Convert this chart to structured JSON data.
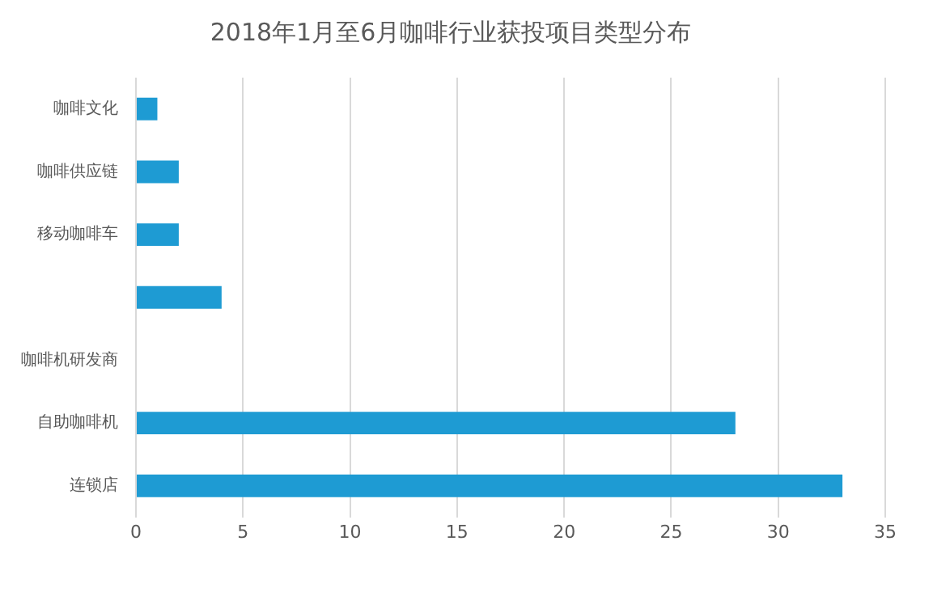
{
  "chart_data": {
    "type": "bar",
    "orientation": "horizontal",
    "title": "2018年1月至6月咖啡行业获投项目类型分布",
    "categories": [
      "咖啡文化",
      "咖啡供应链",
      "移动咖啡车",
      null,
      "咖啡机研发商",
      "自助咖啡机",
      "连锁店"
    ],
    "values": [
      1,
      2,
      2,
      4,
      null,
      28,
      33
    ],
    "color": "#1e9bd3",
    "xlim": [
      0,
      35
    ],
    "xticks": [
      0,
      5,
      10,
      15,
      20,
      25,
      30,
      35
    ],
    "grid": "x",
    "legend": false
  }
}
